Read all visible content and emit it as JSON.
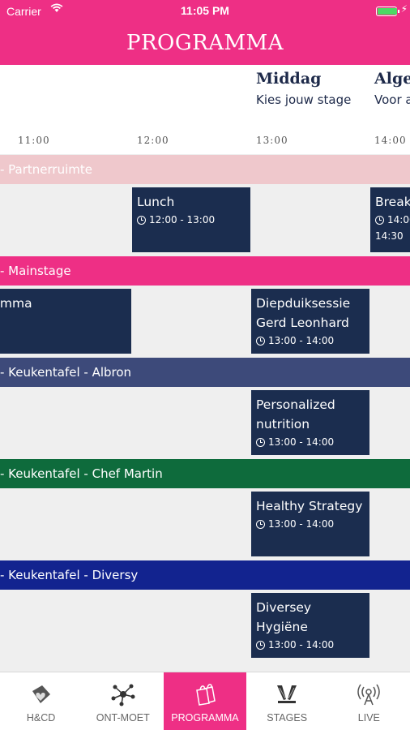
{
  "status_bar": {
    "carrier": "Carrier",
    "time": "11:05 PM",
    "battery_level": 1.0
  },
  "nav": {
    "title": "PROGRAMMA"
  },
  "sessions": [
    {
      "title": "Middag",
      "subtitle": "Kies jouw stage"
    },
    {
      "title": "Algem",
      "subtitle": "Voor a"
    }
  ],
  "times": [
    "11:00",
    "12:00",
    "13:00",
    "14:00"
  ],
  "tracks": [
    {
      "name": "- Partnerruimte",
      "color": "#efc8cc",
      "events": [
        {
          "title": "Lunch",
          "time": "12:00 - 13:00"
        },
        {
          "title": "Break",
          "time": "14:00",
          "time_cont": "14:30"
        }
      ]
    },
    {
      "name": "- Mainstage",
      "color": "#ee2f85",
      "events": [
        {
          "title": "ramma"
        },
        {
          "title": "Diepduiksessie Gerd Leonhard",
          "time": "13:00 - 14:00"
        }
      ]
    },
    {
      "name": "- Keukentafel - Albron",
      "color": "#3d4a7a",
      "events": [
        {
          "title": "Personalized nutrition",
          "time": "13:00 - 14:00"
        }
      ]
    },
    {
      "name": "- Keukentafel - Chef Martin",
      "color": "#0e6b3c",
      "events": [
        {
          "title": "Healthy Strategy",
          "time": "13:00 - 14:00"
        }
      ]
    },
    {
      "name": "- Keukentafel - Diversy",
      "color": "#12238f",
      "events": [
        {
          "title": "Diversey Hygiëne",
          "time": "13:00 - 14:00"
        }
      ]
    }
  ],
  "tabs": [
    {
      "label": "H&CD",
      "icon": "heart-tag-icon",
      "active": false
    },
    {
      "label": "ONT-MOET",
      "icon": "network-icon",
      "active": false
    },
    {
      "label": "PROGRAMMA",
      "icon": "bags-icon",
      "active": true
    },
    {
      "label": "STAGES",
      "icon": "spotlight-icon",
      "active": false
    },
    {
      "label": "LIVE",
      "icon": "broadcast-icon",
      "active": false
    }
  ],
  "colors": {
    "brand": "#ee2f85",
    "event_bg": "#1b2d4f",
    "lane_bg": "#efefef"
  }
}
